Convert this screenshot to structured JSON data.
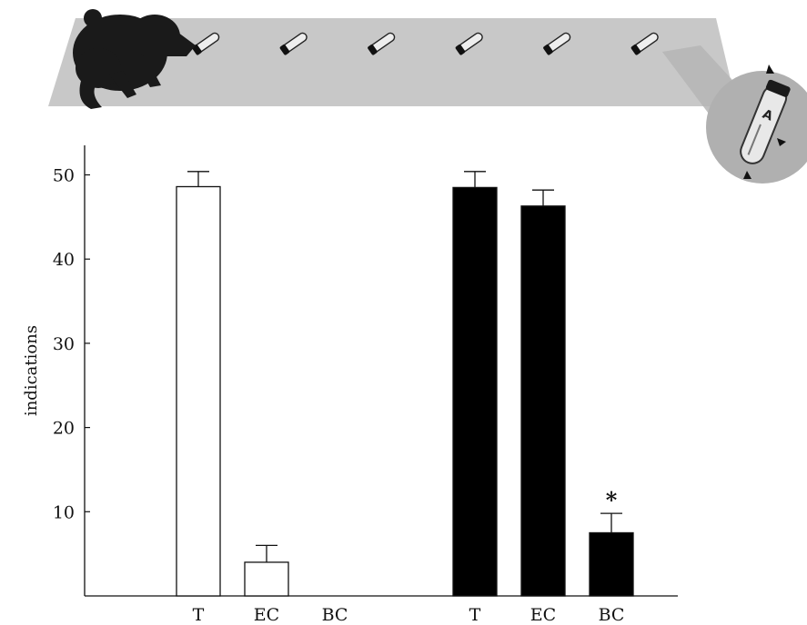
{
  "chart_data": {
    "type": "bar",
    "ylabel": "indications",
    "ylim": [
      0,
      52
    ],
    "yticks": [
      10,
      20,
      30,
      40,
      50
    ],
    "grid": false,
    "groups": [
      {
        "fill": "#ffffff",
        "bars": [
          {
            "category": "T",
            "value": 48.6,
            "error": 1.8
          },
          {
            "category": "EC",
            "value": 4.0,
            "error": 2.0
          },
          {
            "category": "BC",
            "value": 0,
            "error": 0
          }
        ]
      },
      {
        "fill": "#000000",
        "bars": [
          {
            "category": "T",
            "value": 48.5,
            "error": 1.9
          },
          {
            "category": "EC",
            "value": 46.3,
            "error": 1.9
          },
          {
            "category": "BC",
            "value": 7.5,
            "error": 2.3,
            "annotation": "*"
          }
        ]
      }
    ]
  },
  "illustration": {
    "tube_count": 6,
    "tube_label": "A"
  }
}
